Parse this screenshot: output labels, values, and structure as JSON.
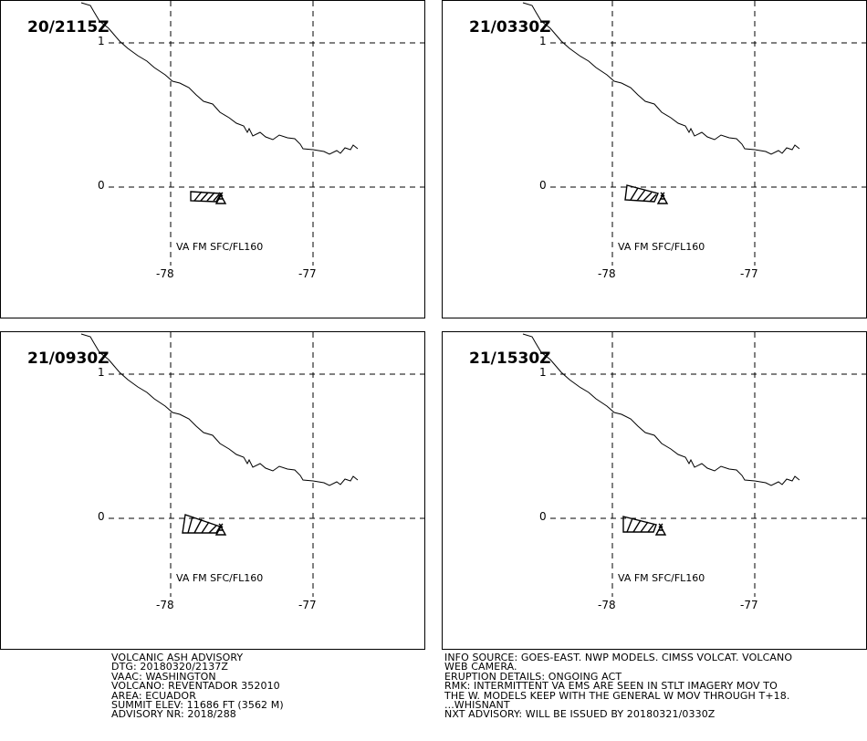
{
  "panels": [
    {
      "time": "20/2115Z",
      "lat_top": "1",
      "lat_mid": "0",
      "lon_left": "-78",
      "lon_right": "-77",
      "va_label": "VA FM SFC/FL160"
    },
    {
      "time": "21/0330Z",
      "lat_top": "1",
      "lat_mid": "0",
      "lon_left": "-78",
      "lon_right": "-77",
      "va_label": "VA FM SFC/FL160"
    },
    {
      "time": "21/0930Z",
      "lat_top": "1",
      "lat_mid": "0",
      "lon_left": "-78",
      "lon_right": "-77",
      "va_label": "VA FM SFC/FL160"
    },
    {
      "time": "21/1530Z",
      "lat_top": "1",
      "lat_mid": "0",
      "lon_left": "-78",
      "lon_right": "-77",
      "va_label": "VA FM SFC/FL160"
    }
  ],
  "advisory_left": {
    "line1": "VOLCANIC ASH ADVISORY",
    "line2": "DTG: 20180320/2137Z",
    "line3": "VAAC: WASHINGTON",
    "line4": "VOLCANO: REVENTADOR 352010",
    "line5": "AREA: ECUADOR",
    "line6": "SUMMIT ELEV: 11686 FT (3562 M)",
    "line7": "ADVISORY NR: 2018/288"
  },
  "advisory_right": {
    "line1": "INFO SOURCE: GOES-EAST. NWP MODELS. CIMSS VOLCAT. VOLCANO",
    "line2": "WEB CAMERA.",
    "line3": "ERUPTION DETAILS: ONGOING ACT",
    "line4": "RMK: INTERMITTENT VA EMS ARE SEEN IN STLT IMAGERY MOV TO",
    "line5": "THE W. MODELS KEEP WITH THE GENERAL W MOV THROUGH T+18.",
    "line6": "...WHISNANT",
    "line7": "NXT ADVISORY: WILL BE ISSUED BY 20180321/0330Z"
  },
  "colors": {
    "line": "#000000",
    "background": "#ffffff"
  }
}
